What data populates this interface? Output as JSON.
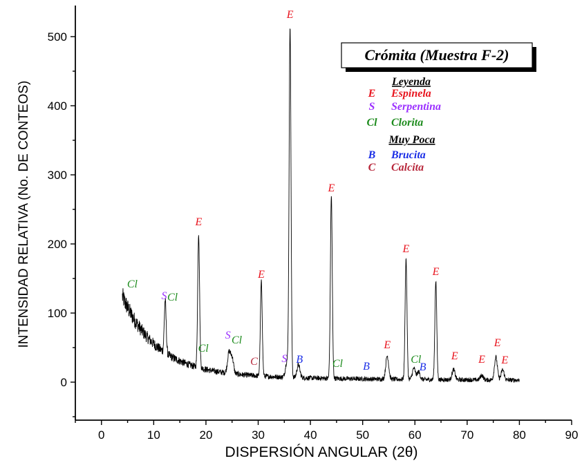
{
  "chart_data": {
    "type": "line",
    "title": "Crómita (Muestra F-2)",
    "xlabel": "DISPERSIÓN ANGULAR (2θ)",
    "ylabel": "INTENSIDAD RELATIVA (No. DE CONTEOS)",
    "xlim": [
      -5,
      90
    ],
    "ylim": [
      -55,
      545
    ],
    "x_ticks": [
      "0",
      "10",
      "20",
      "30",
      "40",
      "50",
      "60",
      "70",
      "80",
      "90"
    ],
    "y_ticks": [
      "0",
      "100",
      "200",
      "300",
      "400",
      "500"
    ],
    "grid": false,
    "legend_position": "top-right",
    "series": [
      {
        "color": "#000000",
        "x_range": [
          4,
          80
        ],
        "baseline": "decaying background from about 115 counts at 4° to about 2 counts at 80°",
        "peaks": [
          {
            "x": 6.2,
            "y": 60
          },
          {
            "x": 12.2,
            "y": 118
          },
          {
            "x": 18.6,
            "y": 215
          },
          {
            "x": 24.4,
            "y": 42
          },
          {
            "x": 25.0,
            "y": 35
          },
          {
            "x": 30.6,
            "y": 145
          },
          {
            "x": 35.5,
            "y": 30
          },
          {
            "x": 36.1,
            "y": 515
          },
          {
            "x": 37.7,
            "y": 25
          },
          {
            "x": 44.0,
            "y": 270
          },
          {
            "x": 54.7,
            "y": 38
          },
          {
            "x": 58.3,
            "y": 178
          },
          {
            "x": 59.8,
            "y": 20
          },
          {
            "x": 60.7,
            "y": 15
          },
          {
            "x": 64.0,
            "y": 147
          },
          {
            "x": 67.4,
            "y": 18
          },
          {
            "x": 72.8,
            "y": 10
          },
          {
            "x": 75.5,
            "y": 36
          },
          {
            "x": 76.8,
            "y": 18
          }
        ]
      }
    ],
    "legend": {
      "heading": "Leyenda",
      "subheading": "Muy Poca",
      "items": [
        {
          "symbol": "E",
          "name": "Espinela",
          "color": "#e8141e"
        },
        {
          "symbol": "S",
          "name": "Serpentina",
          "color": "#9b30ff"
        },
        {
          "symbol": "Cl",
          "name": "Clorita",
          "color": "#1e8c1e"
        },
        {
          "symbol": "B",
          "name": "Brucita",
          "color": "#1a2ee6"
        },
        {
          "symbol": "C",
          "name": "Calcita",
          "color": "#b8283c"
        }
      ]
    },
    "annotations": [
      {
        "text": "E",
        "x": 36.1,
        "y": 527,
        "color": "#e8141e"
      },
      {
        "text": "E",
        "x": 44.0,
        "y": 276,
        "color": "#e8141e"
      },
      {
        "text": "E",
        "x": 18.6,
        "y": 227,
        "color": "#e8141e"
      },
      {
        "text": "E",
        "x": 58.3,
        "y": 188,
        "color": "#e8141e"
      },
      {
        "text": "E",
        "x": 64.0,
        "y": 155,
        "color": "#e8141e"
      },
      {
        "text": "E",
        "x": 30.6,
        "y": 151,
        "color": "#e8141e"
      },
      {
        "text": "E",
        "x": 54.7,
        "y": 49,
        "color": "#e8141e"
      },
      {
        "text": "E",
        "x": 67.6,
        "y": 33,
        "color": "#e8141e"
      },
      {
        "text": "E",
        "x": 72.8,
        "y": 28,
        "color": "#e8141e"
      },
      {
        "text": "E",
        "x": 75.8,
        "y": 52,
        "color": "#e8141e"
      },
      {
        "text": "E",
        "x": 77.2,
        "y": 27,
        "color": "#e8141e"
      },
      {
        "text": "Cl",
        "x": 5.9,
        "y": 137,
        "color": "#1e8c1e"
      },
      {
        "text": "S",
        "x": 12.0,
        "y": 120,
        "color": "#9b30ff"
      },
      {
        "text": "Cl",
        "x": 13.6,
        "y": 118,
        "color": "#1e8c1e"
      },
      {
        "text": "Cl",
        "x": 19.5,
        "y": 44,
        "color": "#1e8c1e"
      },
      {
        "text": "S",
        "x": 24.2,
        "y": 63,
        "color": "#9b30ff"
      },
      {
        "text": "Cl",
        "x": 25.9,
        "y": 56,
        "color": "#1e8c1e"
      },
      {
        "text": "C",
        "x": 29.2,
        "y": 25,
        "color": "#b8283c"
      },
      {
        "text": "S",
        "x": 35.0,
        "y": 29,
        "color": "#9b30ff"
      },
      {
        "text": "B",
        "x": 37.9,
        "y": 28,
        "color": "#1a2ee6"
      },
      {
        "text": "Cl",
        "x": 45.2,
        "y": 22,
        "color": "#1e8c1e"
      },
      {
        "text": "B",
        "x": 50.7,
        "y": 18,
        "color": "#1a2ee6"
      },
      {
        "text": "Cl",
        "x": 60.2,
        "y": 28,
        "color": "#1e8c1e"
      },
      {
        "text": "B",
        "x": 61.5,
        "y": 17,
        "color": "#1a2ee6"
      }
    ]
  }
}
